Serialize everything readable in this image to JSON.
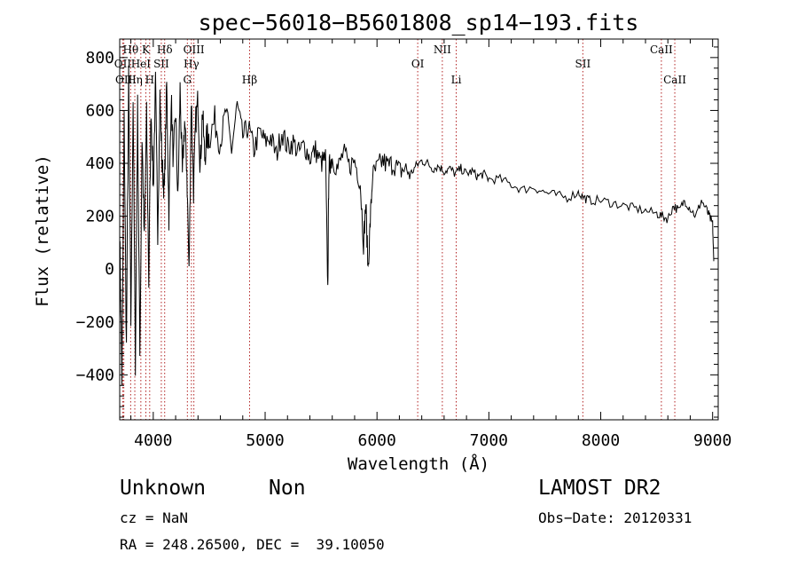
{
  "chart_data": {
    "type": "line",
    "title": "spec−56018−B5601808_sp14−193.fits",
    "xlabel": "Wavelength (Å)",
    "ylabel": "Flux (relative)",
    "xlim": [
      3700,
      9050
    ],
    "ylim": [
      -570,
      870
    ],
    "x_ticks": [
      4000,
      5000,
      6000,
      7000,
      8000,
      9000
    ],
    "x_tick_labels": [
      "4000",
      "5000",
      "6000",
      "7000",
      "8000",
      "9000"
    ],
    "y_ticks": [
      -400,
      -200,
      0,
      200,
      400,
      600,
      800
    ],
    "y_tick_labels": [
      "−400",
      "−200",
      "0",
      "200",
      "400",
      "600",
      "800"
    ],
    "series_color": "#000000",
    "line_marker_color": "#b22222",
    "spectrum": {
      "x": [
        3700,
        3720,
        3740,
        3760,
        3780,
        3800,
        3820,
        3840,
        3860,
        3880,
        3900,
        3920,
        3940,
        3960,
        3980,
        4000,
        4020,
        4040,
        4060,
        4080,
        4100,
        4120,
        4140,
        4160,
        4180,
        4200,
        4220,
        4240,
        4260,
        4280,
        4300,
        4320,
        4340,
        4360,
        4380,
        4400,
        4420,
        4440,
        4460,
        4480,
        4500,
        4550,
        4600,
        4650,
        4700,
        4750,
        4800,
        4850,
        4900,
        4950,
        5000,
        5050,
        5100,
        5150,
        5200,
        5250,
        5300,
        5350,
        5400,
        5450,
        5500,
        5540,
        5560,
        5570,
        5580,
        5600,
        5650,
        5700,
        5750,
        5800,
        5850,
        5880,
        5900,
        5920,
        5940,
        5960,
        6000,
        6050,
        6100,
        6150,
        6200,
        6250,
        6300,
        6350,
        6400,
        6450,
        6500,
        6550,
        6600,
        6650,
        6700,
        6750,
        6800,
        6850,
        6900,
        6950,
        7000,
        7100,
        7200,
        7300,
        7400,
        7500,
        7600,
        7700,
        7800,
        7850,
        7900,
        8000,
        8100,
        8200,
        8300,
        8400,
        8500,
        8550,
        8600,
        8650,
        8700,
        8750,
        8800,
        8850,
        8900,
        8950,
        8980,
        9000,
        9010
      ],
      "y": [
        150,
        -420,
        560,
        -300,
        720,
        -200,
        640,
        -350,
        610,
        -330,
        500,
        100,
        580,
        -50,
        620,
        300,
        700,
        150,
        650,
        380,
        300,
        700,
        200,
        650,
        400,
        600,
        250,
        680,
        350,
        560,
        380,
        -20,
        650,
        300,
        560,
        640,
        380,
        600,
        420,
        500,
        500,
        560,
        480,
        600,
        450,
        620,
        500,
        540,
        450,
        520,
        480,
        500,
        430,
        520,
        460,
        480,
        440,
        470,
        420,
        450,
        400,
        420,
        -80,
        380,
        400,
        420,
        380,
        440,
        390,
        410,
        330,
        100,
        250,
        0,
        180,
        350,
        380,
        410,
        390,
        400,
        370,
        380,
        360,
        390,
        410,
        400,
        380,
        390,
        370,
        380,
        360,
        380,
        360,
        370,
        350,
        360,
        340,
        340,
        320,
        300,
        310,
        290,
        280,
        270,
        290,
        270,
        260,
        260,
        250,
        240,
        230,
        220,
        210,
        200,
        190,
        240,
        220,
        260,
        230,
        200,
        260,
        220,
        190,
        170,
        30
      ]
    },
    "spectral_lines": [
      {
        "name": "Hθ",
        "wavelength": 3798,
        "row": 0
      },
      {
        "name": "K",
        "wavelength": 3934,
        "row": 0
      },
      {
        "name": "Hδ",
        "wavelength": 4102,
        "row": 0
      },
      {
        "name": "OIII",
        "wavelength": 4363,
        "row": 0
      },
      {
        "name": "NII",
        "wavelength": 6584,
        "row": 0
      },
      {
        "name": "CaII",
        "wavelength": 8542,
        "row": 0
      },
      {
        "name": "OII",
        "wavelength": 3727,
        "row": 1
      },
      {
        "name": "HeI",
        "wavelength": 3889,
        "row": 1
      },
      {
        "name": "SII",
        "wavelength": 4072,
        "row": 1
      },
      {
        "name": "Hγ",
        "wavelength": 4341,
        "row": 1
      },
      {
        "name": "OI",
        "wavelength": 6364,
        "row": 1
      },
      {
        "name": "SII",
        "wavelength": 7840,
        "row": 1
      },
      {
        "name": "OII",
        "wavelength": 3737,
        "row": 2
      },
      {
        "name": "Hη",
        "wavelength": 3835,
        "row": 2
      },
      {
        "name": "H",
        "wavelength": 3968,
        "row": 2
      },
      {
        "name": "G",
        "wavelength": 4305,
        "row": 2
      },
      {
        "name": "Hβ",
        "wavelength": 4861,
        "row": 2
      },
      {
        "name": "Li",
        "wavelength": 6708,
        "row": 2
      },
      {
        "name": "CaII",
        "wavelength": 8662,
        "row": 2
      }
    ]
  },
  "info": {
    "object_class": "Unknown",
    "subclass": "Non",
    "survey": "LAMOST DR2",
    "cz": "cz = NaN",
    "obs_date": "Obs−Date: 20120331",
    "coords": "RA = 248.26500, DEC =  39.10050"
  }
}
